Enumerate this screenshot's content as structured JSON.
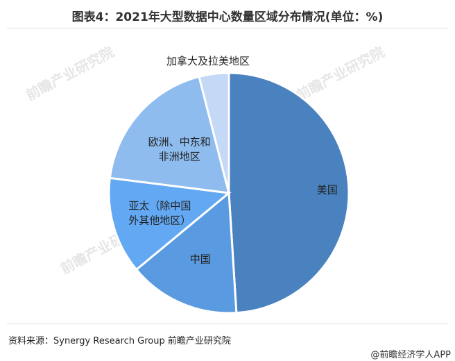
{
  "title": "图表4：2021年大型数据中心数量区域分布情况(单位：%)",
  "source": "资料来源：Synergy Research Group 前瞻产业研究院",
  "brand": "@前瞻经济学人APP",
  "watermark": "前瞻产业研究院",
  "chart_data": {
    "type": "pie",
    "title": "图表4：2021年大型数据中心数量区域分布情况(单位：%)",
    "unit": "%",
    "slices": [
      {
        "label": "美国",
        "lines": [
          "美国"
        ],
        "value": 49,
        "color": "#4a82bf"
      },
      {
        "label": "中国",
        "lines": [
          "中国"
        ],
        "value": 15,
        "color": "#5a9ae0"
      },
      {
        "label": "亚太（除中国外其他地区）",
        "lines": [
          "亚太（除中国",
          "外其他地区）"
        ],
        "value": 13,
        "color": "#62a8f2"
      },
      {
        "label": "欧洲、中东和非洲地区",
        "lines": [
          "欧洲、中东和",
          "非洲地区"
        ],
        "value": 19,
        "color": "#8ebcee"
      },
      {
        "label": "加拿大及拉美地区",
        "lines": [
          "加拿大及拉美地区"
        ],
        "value": 4,
        "color": "#c3d9f6"
      }
    ]
  }
}
